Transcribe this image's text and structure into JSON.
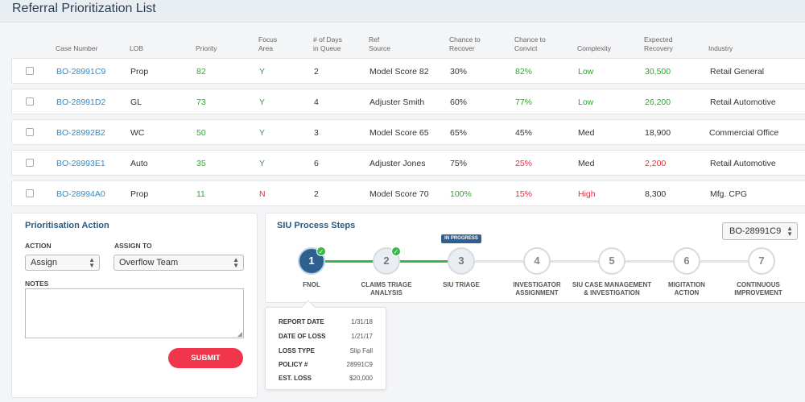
{
  "page": {
    "title": "Referral Prioritization List"
  },
  "table": {
    "headers": {
      "case_number": "Case Number",
      "lob": "LOB",
      "priority": "Priority",
      "focus_area": [
        "Focus",
        "Area"
      ],
      "days_in_queue": [
        "# of Days",
        "in Queue"
      ],
      "ref_source": [
        "Ref",
        "Source"
      ],
      "chance_recover": [
        "Chance to",
        "Recover"
      ],
      "chance_convict": [
        "Chance to",
        "Convict"
      ],
      "complexity": "Complexity",
      "expected_recovery": [
        "Expected",
        "Recovery"
      ],
      "industry": "Industry"
    },
    "rows": [
      {
        "case": "BO-28991C9",
        "lob": "Prop",
        "priority": "82",
        "focus": "Y",
        "days": "2",
        "ref": "Model Score 82",
        "recover": "30%",
        "convict": "82%",
        "complexity": "Low",
        "expected": "30,500",
        "industry": "Retail General"
      },
      {
        "case": "BO-28991D2",
        "lob": "GL",
        "priority": "73",
        "focus": "Y",
        "days": "4",
        "ref": "Adjuster Smith",
        "recover": "60%",
        "convict": "77%",
        "complexity": "Low",
        "expected": "26,200",
        "industry": "Retail Automotive"
      },
      {
        "case": "BO-28992B2",
        "lob": "WC",
        "priority": "50",
        "focus": "Y",
        "days": "3",
        "ref": "Model Score 65",
        "recover": "65%",
        "convict": "45%",
        "complexity": "Med",
        "expected": "18,900",
        "industry": "Commercial Office"
      },
      {
        "case": "BO-28993E1",
        "lob": "Auto",
        "priority": "35",
        "focus": "Y",
        "days": "6",
        "ref": "Adjuster Jones",
        "recover": "75%",
        "convict": "25%",
        "complexity": "Med",
        "expected": "2,200",
        "industry": "Retail Automotive"
      },
      {
        "case": "BO-28994A0",
        "lob": "Prop",
        "priority": "11",
        "focus": "N",
        "days": "2",
        "ref": "Model Score 70",
        "recover": "100%",
        "convict": "15%",
        "complexity": "High",
        "expected": "8,300",
        "industry": "Mfg. CPG"
      }
    ]
  },
  "action_panel": {
    "title": "Prioritisation Action",
    "action_label": "ACTION",
    "action_value": "Assign",
    "assign_label": "ASSIGN TO",
    "assign_value": "Overflow Team",
    "notes_label": "NOTES",
    "notes_value": "",
    "submit_label": "SUBMIT"
  },
  "siu_panel": {
    "title": "SIU Process Steps",
    "selected_case": "BO-28991C9",
    "badge": "IN PROGRESS",
    "steps": [
      {
        "num": "1",
        "label": [
          "FNOL"
        ]
      },
      {
        "num": "2",
        "label": [
          "CLAIMS TRIAGE",
          "ANALYSIS"
        ]
      },
      {
        "num": "3",
        "label": [
          "SIU TRIAGE"
        ]
      },
      {
        "num": "4",
        "label": [
          "INVESTIGATOR",
          "ASSIGNMENT"
        ]
      },
      {
        "num": "5",
        "label": [
          "SIU CASE MANAGEMENT",
          "& INVESTIGATION"
        ]
      },
      {
        "num": "6",
        "label": [
          "MIGITATION",
          "ACTION"
        ]
      },
      {
        "num": "7",
        "label": [
          "CONTINUOUS",
          "IMPROVEMENT"
        ]
      }
    ],
    "details": [
      {
        "key": "REPORT DATE",
        "value": "1/31/18"
      },
      {
        "key": "DATE OF LOSS",
        "value": "1/21/17"
      },
      {
        "key": "LOSS TYPE",
        "value": "Slip Fall"
      },
      {
        "key": "POLICY #",
        "value": "28991C9"
      },
      {
        "key": "EST. LOSS",
        "value": "$20,000"
      }
    ]
  },
  "colors": {
    "accent": "#2a8fd4",
    "good": "#2ea82e",
    "bad": "#e0303e",
    "submit": "#f0354c",
    "step_active": "#2f5f8f"
  }
}
